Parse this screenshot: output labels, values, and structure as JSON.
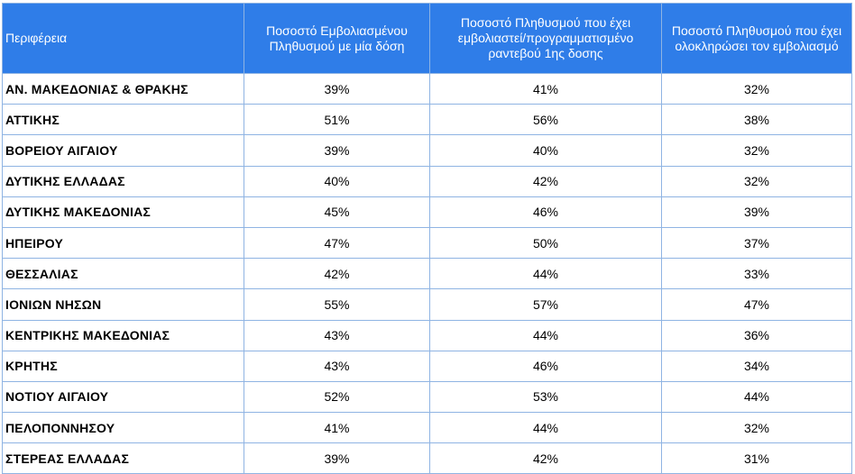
{
  "colors": {
    "header_bg": "#2f7de8",
    "grid": "#8fb4e3",
    "text": "#000000",
    "header_text": "#ffffff"
  },
  "chart_data": {
    "type": "table",
    "columns": [
      "Περιφέρεια",
      "Ποσοστό Εμβολιασμένου Πληθυσμού με μία δόση",
      "Ποσοστό Πληθυσμού  που έχει εμβολιαστεί/προγραμματισμένο ραντεβού 1ης δοσης",
      "Ποσοστό Πληθυσμού που έχει ολοκληρώσει τον εμβολιασμό"
    ],
    "rows": [
      [
        "ΑΝ. ΜΑΚΕΔΟΝΙΑΣ & ΘΡΑΚΗΣ",
        "39%",
        "41%",
        "32%"
      ],
      [
        "ΑΤΤΙΚΗΣ",
        "51%",
        "56%",
        "38%"
      ],
      [
        "ΒΟΡΕΙΟΥ ΑΙΓΑΙΟΥ",
        "39%",
        "40%",
        "32%"
      ],
      [
        "ΔΥΤΙΚΗΣ ΕΛΛΑΔΑΣ",
        "40%",
        "42%",
        "32%"
      ],
      [
        "ΔΥΤΙΚΗΣ ΜΑΚΕΔΟΝΙΑΣ",
        "45%",
        "46%",
        "39%"
      ],
      [
        "ΗΠΕΙΡΟΥ",
        "47%",
        "50%",
        "37%"
      ],
      [
        "ΘΕΣΣΑΛΙΑΣ",
        "42%",
        "44%",
        "33%"
      ],
      [
        "ΙΟΝΙΩΝ ΝΗΣΩΝ",
        "55%",
        "57%",
        "47%"
      ],
      [
        "ΚΕΝΤΡΙΚΗΣ ΜΑΚΕΔΟΝΙΑΣ",
        "43%",
        "44%",
        "36%"
      ],
      [
        "ΚΡΗΤΗΣ",
        "43%",
        "46%",
        "34%"
      ],
      [
        "ΝΟΤΙΟΥ ΑΙΓΑΙΟΥ",
        "52%",
        "53%",
        "44%"
      ],
      [
        "ΠΕΛΟΠΟΝΝΗΣΟΥ",
        "41%",
        "44%",
        "32%"
      ],
      [
        "ΣΤΕΡΕΑΣ ΕΛΛΑΔΑΣ",
        "39%",
        "42%",
        "31%"
      ]
    ]
  }
}
